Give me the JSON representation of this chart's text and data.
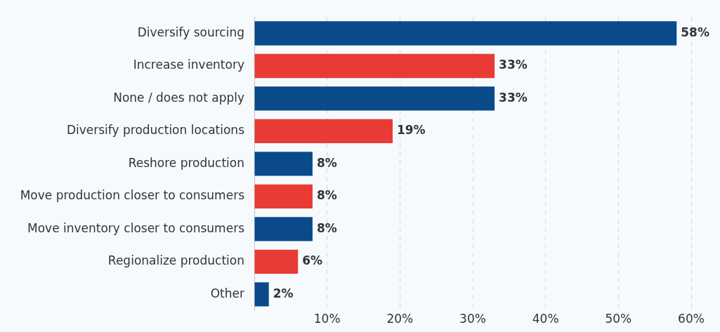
{
  "chart_data": {
    "type": "bar",
    "orientation": "horizontal",
    "categories": [
      "Diversify sourcing",
      "Increase inventory",
      "None / does not apply",
      "Diversify production locations",
      "Reshore production",
      "Move production closer to consumers",
      "Move inventory closer to consumers",
      "Regionalize production",
      "Other"
    ],
    "values": [
      58,
      33,
      33,
      19,
      8,
      8,
      8,
      6,
      2
    ],
    "colors": [
      "#0b4a8a",
      "#e83b36",
      "#0b4a8a",
      "#e83b36",
      "#0b4a8a",
      "#e83b36",
      "#0b4a8a",
      "#e83b36",
      "#0b4a8a"
    ],
    "value_labels": [
      "58%",
      "33%",
      "33%",
      "19%",
      "8%",
      "8%",
      "8%",
      "6%",
      "2%"
    ],
    "xlim": [
      0,
      60
    ],
    "xticks": [
      {
        "value": 0,
        "label": null
      },
      {
        "value": 10,
        "label": "10%"
      },
      {
        "value": 20,
        "label": "20%"
      },
      {
        "value": 30,
        "label": "30%"
      },
      {
        "value": 40,
        "label": "40%"
      },
      {
        "value": 50,
        "label": "50%"
      },
      {
        "value": 60,
        "label": "60%"
      }
    ],
    "grid": "x",
    "legend": false
  }
}
